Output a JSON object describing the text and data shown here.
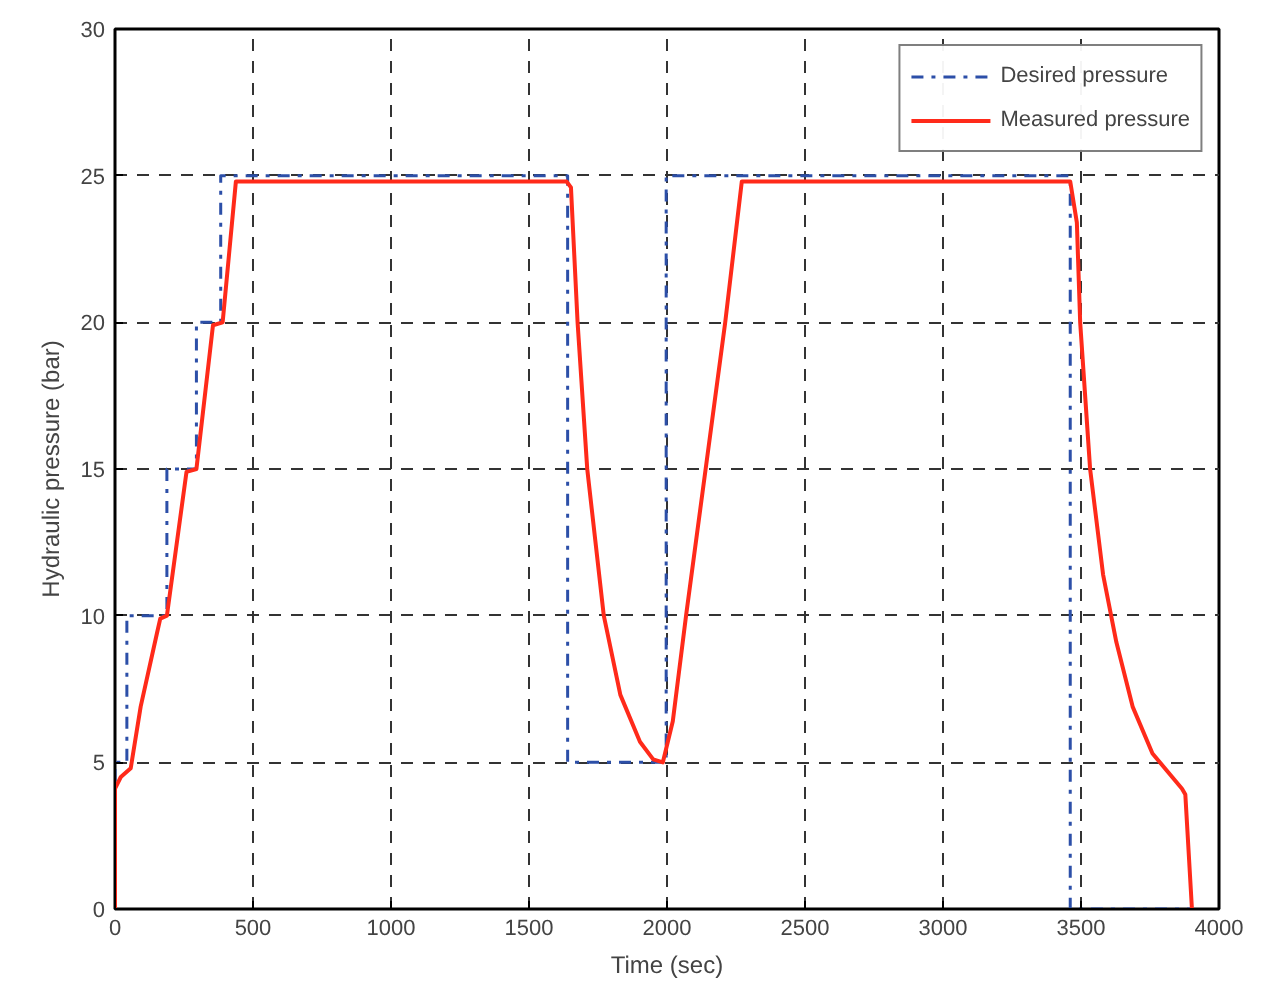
{
  "chart_data": {
    "type": "line",
    "xlabel": "Time (sec)",
    "ylabel": "Hydraulic pressure (bar)",
    "xlim": [
      0,
      4000
    ],
    "ylim": [
      0,
      30
    ],
    "xticks": [
      0,
      500,
      1000,
      1500,
      2000,
      2500,
      3000,
      3500,
      4000
    ],
    "yticks": [
      0,
      5,
      10,
      15,
      20,
      25,
      30
    ],
    "grid": true,
    "legend": "top right",
    "marker": "none",
    "series": [
      {
        "name": "Desired pressure",
        "color": "#2c4fa8",
        "line_style": "dashdot",
        "x": [
          0,
          0,
          43,
          43,
          188,
          188,
          295,
          295,
          383,
          383,
          1640,
          1640,
          1997,
          1997,
          3461,
          3461,
          3900
        ],
        "values": [
          0,
          5,
          5,
          10,
          10,
          15,
          15,
          20,
          20,
          25,
          25,
          5,
          5,
          25,
          25,
          0,
          0
        ]
      },
      {
        "name": "Measured pressure",
        "color": "#ff2a1a",
        "line_style": "solid",
        "x": [
          0,
          0,
          21,
          57,
          93,
          152,
          164,
          188,
          259,
          295,
          355,
          390,
          438,
          1636,
          1652,
          1676,
          1711,
          1771,
          1831,
          1902,
          1950,
          1985,
          2021,
          2069,
          2140,
          2211,
          2271,
          3461,
          3485,
          3497,
          3533,
          3580,
          3628,
          3687,
          3759,
          3866,
          3878,
          3902
        ],
        "values": [
          0,
          4.1,
          4.5,
          4.8,
          6.9,
          9.4,
          9.9,
          10,
          14.9,
          15,
          19.9,
          20,
          24.8,
          24.8,
          24.6,
          20,
          15,
          10,
          7.3,
          5.7,
          5.1,
          5,
          6.4,
          10,
          15,
          20,
          24.8,
          24.8,
          23.4,
          20,
          15,
          11.4,
          9.1,
          6.9,
          5.3,
          4.1,
          3.9,
          0
        ]
      }
    ]
  }
}
